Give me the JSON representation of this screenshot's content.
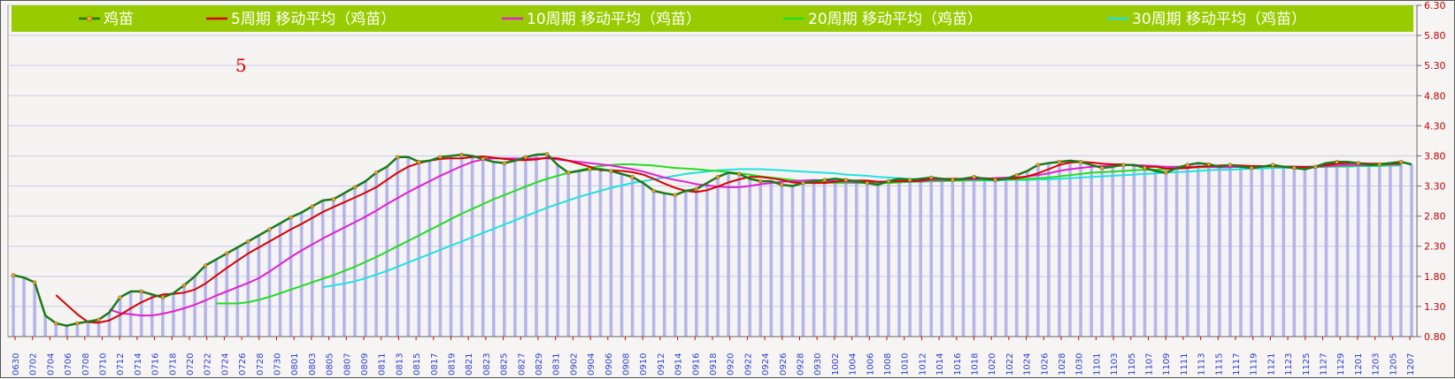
{
  "chart_data": {
    "type": "line",
    "title": "",
    "xlabel": "",
    "ylabel": "",
    "ylim": [
      0.8,
      6.3
    ],
    "yticks": [
      "0.80",
      "1.30",
      "1.80",
      "2.30",
      "2.80",
      "3.30",
      "3.80",
      "4.30",
      "4.80",
      "5.30",
      "5.80",
      "6.30"
    ],
    "ytick_values": [
      0.8,
      1.3,
      1.8,
      2.3,
      2.8,
      3.3,
      3.8,
      4.3,
      4.8,
      5.3,
      5.8,
      6.3
    ],
    "xtick_labels": [
      "0630",
      "0702",
      "0704",
      "0706",
      "0708",
      "0710",
      "0712",
      "0714",
      "0716",
      "0718",
      "0720",
      "0722",
      "0724",
      "0726",
      "0728",
      "0730",
      "0801",
      "0803",
      "0805",
      "0807",
      "0809",
      "0811",
      "0813",
      "0815",
      "0817",
      "0819",
      "0821",
      "0823",
      "0825",
      "0827",
      "0829",
      "0831",
      "0902",
      "0904",
      "0906",
      "0908",
      "0910",
      "0912",
      "0914",
      "0916",
      "0918",
      "0920",
      "0922",
      "0924",
      "0926",
      "0928",
      "0930",
      "1002",
      "1004",
      "1006",
      "1008",
      "1010",
      "1012",
      "1014",
      "1016",
      "1018",
      "1020",
      "1022",
      "1024",
      "1026",
      "1028",
      "1030",
      "1101",
      "1103",
      "1105",
      "1107",
      "1109",
      "1111",
      "1113",
      "1115",
      "1117",
      "1119",
      "1121",
      "1123",
      "1125",
      "1127",
      "1129",
      "1201",
      "1203",
      "1205",
      "1207"
    ],
    "annotation": "5",
    "legend_position": "top",
    "series": [
      {
        "name": "鸡苗",
        "color": "#1a7a1a",
        "kind": "price",
        "values": [
          1.82,
          1.78,
          1.7,
          1.15,
          1.02,
          0.98,
          1.02,
          1.05,
          1.08,
          1.2,
          1.45,
          1.55,
          1.55,
          1.5,
          1.45,
          1.52,
          1.65,
          1.8,
          1.98,
          2.08,
          2.18,
          2.28,
          2.38,
          2.48,
          2.58,
          2.68,
          2.78,
          2.86,
          2.96,
          3.06,
          3.08,
          3.18,
          3.28,
          3.38,
          3.52,
          3.62,
          3.78,
          3.78,
          3.7,
          3.72,
          3.78,
          3.8,
          3.82,
          3.8,
          3.75,
          3.7,
          3.68,
          3.72,
          3.78,
          3.82,
          3.83,
          3.65,
          3.52,
          3.55,
          3.58,
          3.58,
          3.55,
          3.5,
          3.45,
          3.35,
          3.22,
          3.18,
          3.15,
          3.22,
          3.25,
          3.35,
          3.45,
          3.52,
          3.5,
          3.42,
          3.38,
          3.38,
          3.32,
          3.3,
          3.35,
          3.38,
          3.4,
          3.42,
          3.4,
          3.38,
          3.35,
          3.32,
          3.38,
          3.42,
          3.4,
          3.42,
          3.44,
          3.42,
          3.4,
          3.42,
          3.45,
          3.42,
          3.4,
          3.42,
          3.48,
          3.55,
          3.65,
          3.68,
          3.7,
          3.72,
          3.7,
          3.65,
          3.6,
          3.62,
          3.65,
          3.65,
          3.6,
          3.55,
          3.52,
          3.6,
          3.65,
          3.68,
          3.66,
          3.62,
          3.65,
          3.62,
          3.6,
          3.62,
          3.65,
          3.62,
          3.6,
          3.58,
          3.62,
          3.68,
          3.7,
          3.7,
          3.68,
          3.65,
          3.66,
          3.68,
          3.7,
          3.66
        ]
      },
      {
        "name": "5周期 移动平均（鸡苗）",
        "color": "#d80000",
        "kind": "ma",
        "values": [
          null,
          null,
          null,
          null,
          1.49,
          1.33,
          1.17,
          1.04,
          1.03,
          1.07,
          1.16,
          1.27,
          1.37,
          1.45,
          1.5,
          1.51,
          1.53,
          1.58,
          1.68,
          1.81,
          1.94,
          2.06,
          2.18,
          2.28,
          2.38,
          2.48,
          2.58,
          2.67,
          2.77,
          2.87,
          2.95,
          3.03,
          3.11,
          3.19,
          3.28,
          3.4,
          3.52,
          3.62,
          3.68,
          3.72,
          3.75,
          3.76,
          3.76,
          3.78,
          3.79,
          3.77,
          3.75,
          3.73,
          3.73,
          3.74,
          3.77,
          3.76,
          3.72,
          3.67,
          3.62,
          3.56,
          3.56,
          3.55,
          3.53,
          3.49,
          3.42,
          3.34,
          3.27,
          3.22,
          3.2,
          3.23,
          3.29,
          3.36,
          3.41,
          3.45,
          3.45,
          3.43,
          3.4,
          3.36,
          3.35,
          3.35,
          3.35,
          3.37,
          3.39,
          3.39,
          3.39,
          3.37,
          3.37,
          3.38,
          3.38,
          3.39,
          3.42,
          3.42,
          3.42,
          3.42,
          3.43,
          3.43,
          3.42,
          3.42,
          3.43,
          3.46,
          3.51,
          3.58,
          3.65,
          3.69,
          3.7,
          3.69,
          3.67,
          3.66,
          3.66,
          3.64,
          3.62,
          3.62,
          3.59,
          3.59,
          3.6,
          3.62,
          3.63,
          3.64,
          3.65,
          3.64,
          3.63,
          3.63,
          3.63,
          3.62,
          3.62,
          3.61,
          3.62,
          3.65,
          3.67,
          3.68,
          3.68,
          3.67,
          3.67,
          3.67,
          3.68
        ]
      },
      {
        "name": "10周期 移动平均（鸡苗）",
        "color": "#e020d0",
        "kind": "ma",
        "values": [
          null,
          null,
          null,
          null,
          null,
          null,
          null,
          null,
          null,
          1.25,
          1.19,
          1.17,
          1.15,
          1.15,
          1.18,
          1.22,
          1.27,
          1.33,
          1.4,
          1.48,
          1.55,
          1.62,
          1.69,
          1.77,
          1.88,
          2.0,
          2.12,
          2.23,
          2.33,
          2.43,
          2.52,
          2.61,
          2.7,
          2.79,
          2.89,
          3.0,
          3.1,
          3.2,
          3.29,
          3.38,
          3.47,
          3.55,
          3.63,
          3.7,
          3.74,
          3.76,
          3.76,
          3.76,
          3.75,
          3.76,
          3.76,
          3.74,
          3.72,
          3.7,
          3.68,
          3.66,
          3.64,
          3.61,
          3.58,
          3.54,
          3.49,
          3.44,
          3.4,
          3.37,
          3.33,
          3.31,
          3.29,
          3.28,
          3.28,
          3.3,
          3.33,
          3.35,
          3.37,
          3.38,
          3.39,
          3.4,
          3.39,
          3.38,
          3.37,
          3.36,
          3.37,
          3.37,
          3.38,
          3.38,
          3.38,
          3.38,
          3.4,
          3.4,
          3.4,
          3.41,
          3.41,
          3.42,
          3.43,
          3.44,
          3.44,
          3.46,
          3.48,
          3.51,
          3.55,
          3.58,
          3.6,
          3.62,
          3.63,
          3.64,
          3.65,
          3.65,
          3.64,
          3.63,
          3.62,
          3.62,
          3.62,
          3.62,
          3.62,
          3.61,
          3.61,
          3.62,
          3.62,
          3.63,
          3.63,
          3.62,
          3.62,
          3.62,
          3.62,
          3.63,
          3.64,
          3.65,
          3.65,
          3.65,
          3.66,
          3.66,
          3.67
        ]
      },
      {
        "name": "20周期 移动平均（鸡苗）",
        "color": "#22dd22",
        "kind": "ma",
        "values": [
          null,
          null,
          null,
          null,
          null,
          null,
          null,
          null,
          null,
          null,
          null,
          null,
          null,
          null,
          null,
          null,
          null,
          null,
          null,
          1.35,
          1.35,
          1.35,
          1.37,
          1.41,
          1.46,
          1.52,
          1.58,
          1.64,
          1.7,
          1.76,
          1.82,
          1.89,
          1.96,
          2.04,
          2.12,
          2.21,
          2.3,
          2.39,
          2.48,
          2.57,
          2.66,
          2.75,
          2.84,
          2.92,
          3.0,
          3.08,
          3.15,
          3.22,
          3.29,
          3.36,
          3.42,
          3.47,
          3.52,
          3.56,
          3.6,
          3.63,
          3.65,
          3.66,
          3.66,
          3.65,
          3.64,
          3.62,
          3.6,
          3.59,
          3.58,
          3.56,
          3.55,
          3.53,
          3.51,
          3.49,
          3.46,
          3.44,
          3.42,
          3.4,
          3.38,
          3.37,
          3.36,
          3.35,
          3.35,
          3.35,
          3.35,
          3.35,
          3.35,
          3.36,
          3.37,
          3.37,
          3.38,
          3.38,
          3.39,
          3.39,
          3.4,
          3.4,
          3.41,
          3.41,
          3.41,
          3.42,
          3.43,
          3.44,
          3.46,
          3.48,
          3.5,
          3.52,
          3.53,
          3.54,
          3.55,
          3.56,
          3.57,
          3.57,
          3.58,
          3.59,
          3.6,
          3.61,
          3.61,
          3.62,
          3.62,
          3.62,
          3.62,
          3.62,
          3.62,
          3.62,
          3.62,
          3.62,
          3.62,
          3.62,
          3.63,
          3.63,
          3.64,
          3.64,
          3.64,
          3.65,
          3.65
        ]
      },
      {
        "name": "30周期 移动平均（鸡苗）",
        "color": "#22e0e0",
        "kind": "ma",
        "values": [
          null,
          null,
          null,
          null,
          null,
          null,
          null,
          null,
          null,
          null,
          null,
          null,
          null,
          null,
          null,
          null,
          null,
          null,
          null,
          null,
          null,
          null,
          null,
          null,
          null,
          null,
          null,
          null,
          null,
          1.62,
          1.65,
          1.68,
          1.72,
          1.77,
          1.83,
          1.89,
          1.96,
          2.03,
          2.1,
          2.17,
          2.24,
          2.31,
          2.38,
          2.45,
          2.52,
          2.59,
          2.66,
          2.73,
          2.8,
          2.87,
          2.94,
          3.0,
          3.06,
          3.12,
          3.17,
          3.22,
          3.27,
          3.31,
          3.35,
          3.38,
          3.41,
          3.44,
          3.47,
          3.5,
          3.52,
          3.54,
          3.56,
          3.57,
          3.58,
          3.58,
          3.58,
          3.57,
          3.56,
          3.55,
          3.54,
          3.53,
          3.52,
          3.51,
          3.49,
          3.48,
          3.47,
          3.45,
          3.44,
          3.43,
          3.42,
          3.41,
          3.4,
          3.4,
          3.39,
          3.39,
          3.39,
          3.39,
          3.39,
          3.4,
          3.4,
          3.4,
          3.41,
          3.41,
          3.42,
          3.43,
          3.44,
          3.45,
          3.46,
          3.47,
          3.48,
          3.49,
          3.5,
          3.51,
          3.52,
          3.53,
          3.54,
          3.55,
          3.56,
          3.57,
          3.57,
          3.58,
          3.59,
          3.59,
          3.6,
          3.6,
          3.61,
          3.61,
          3.61,
          3.62,
          3.62,
          3.62,
          3.63,
          3.63,
          3.63,
          3.64,
          3.64
        ]
      }
    ]
  }
}
